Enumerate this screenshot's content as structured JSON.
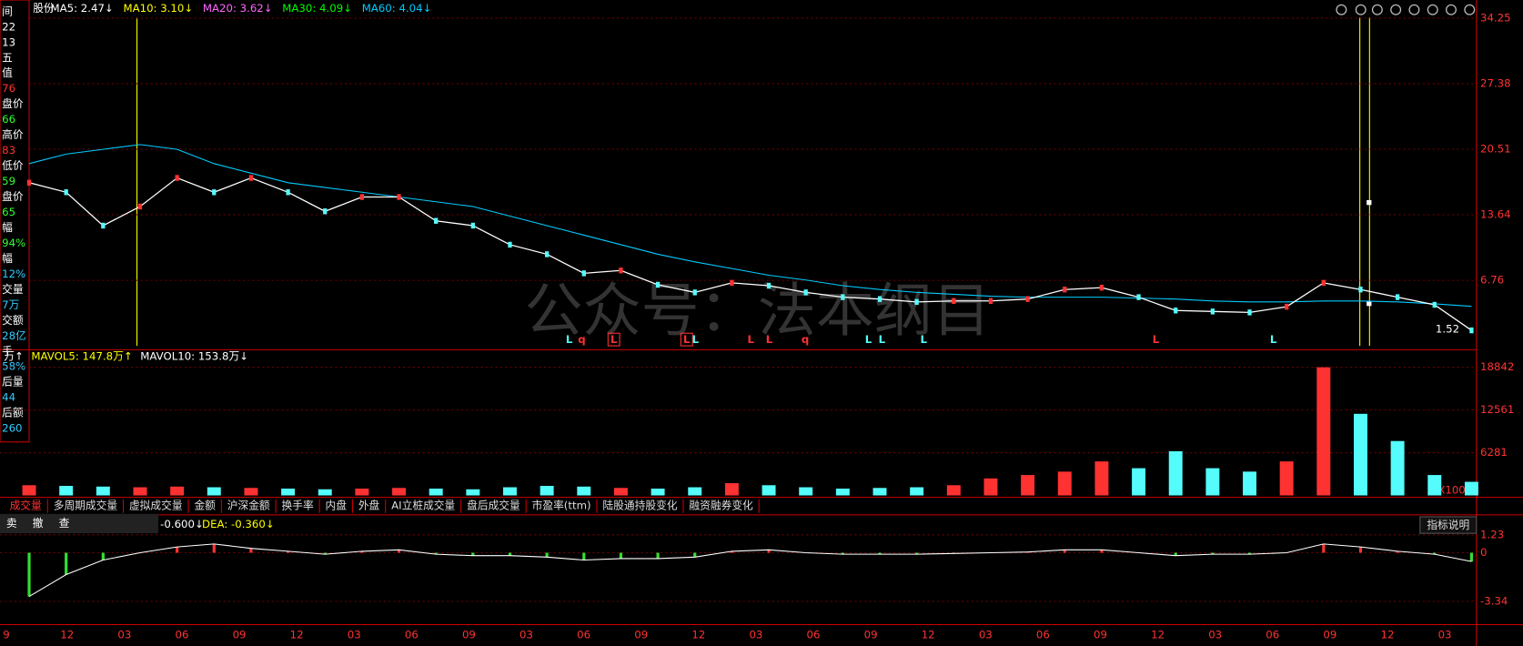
{
  "header": {
    "stock": "股份",
    "ma": [
      {
        "text": "MA5: 2.47↓",
        "color": "#ffffff"
      },
      {
        "text": "MA10: 3.10↓",
        "color": "#ffff00"
      },
      {
        "text": "MA20: 3.62↓",
        "color": "#ff66ff"
      },
      {
        "text": "MA30: 4.09↓",
        "color": "#00ff00"
      },
      {
        "text": "MA60: 4.04↓",
        "color": "#00ccff"
      }
    ]
  },
  "left_panel": [
    {
      "text": "间",
      "color": "#ffffff"
    },
    {
      "text": "22",
      "color": "#ffffff"
    },
    {
      "text": "13",
      "color": "#ffffff"
    },
    {
      "text": "五",
      "color": "#ffffff"
    },
    {
      "text": "值",
      "color": "#ffffff"
    },
    {
      "text": "76",
      "color": "#ff3333"
    },
    {
      "text": "盘价",
      "color": "#ffffff"
    },
    {
      "text": "66",
      "color": "#33ff33"
    },
    {
      "text": "高价",
      "color": "#ffffff"
    },
    {
      "text": "83",
      "color": "#ff3333"
    },
    {
      "text": "低价",
      "color": "#ffffff"
    },
    {
      "text": "59",
      "color": "#33ff33"
    },
    {
      "text": "盘价",
      "color": "#ffffff"
    },
    {
      "text": "65",
      "color": "#33ff33"
    },
    {
      "text": "幅",
      "color": "#ffffff"
    },
    {
      "text": "94%",
      "color": "#33ff33"
    },
    {
      "text": "幅",
      "color": "#ffffff"
    },
    {
      "text": "12%",
      "color": "#33ccff"
    },
    {
      "text": "交量",
      "color": "#ffffff"
    },
    {
      "text": "7万",
      "color": "#33ccff"
    },
    {
      "text": "交额",
      "color": "#ffffff"
    },
    {
      "text": "28亿",
      "color": "#33ccff"
    },
    {
      "text": "手",
      "color": "#ffffff"
    },
    {
      "text": "58%",
      "color": "#33ccff"
    },
    {
      "text": "后量",
      "color": "#ffffff"
    },
    {
      "text": "44",
      "color": "#33ccff"
    },
    {
      "text": "后额",
      "color": "#ffffff"
    },
    {
      "text": "260",
      "color": "#33ccff"
    }
  ],
  "price_panel": {
    "ylim": [
      0,
      36.15
    ],
    "yticks": [
      34.25,
      27.38,
      20.51,
      13.64,
      6.76
    ],
    "last_label": "1.52",
    "close": [
      17,
      16,
      12.5,
      14.5,
      17.5,
      16,
      17.5,
      16,
      14,
      15.5,
      15.5,
      13,
      12.5,
      10.5,
      9.5,
      7.5,
      7.8,
      6.3,
      5.5,
      6.5,
      6.2,
      5.5,
      5,
      4.8,
      4.5,
      4.6,
      4.6,
      4.8,
      5.8,
      6,
      5,
      3.6,
      3.5,
      3.4,
      4,
      6.5,
      5.8,
      5,
      4.2,
      1.52
    ],
    "ma60": [
      19,
      20,
      20.5,
      21,
      20.5,
      19,
      18,
      17,
      16.5,
      16,
      15.5,
      15,
      14.5,
      13.5,
      12.5,
      11.5,
      10.5,
      9.5,
      8.7,
      8,
      7.3,
      6.8,
      6.2,
      5.8,
      5.5,
      5.3,
      5.1,
      5,
      5,
      5,
      4.9,
      4.8,
      4.6,
      4.5,
      4.5,
      4.6,
      4.6,
      4.5,
      4.3,
      4.04
    ],
    "signals": [
      "L",
      "q",
      "L",
      "L",
      "L",
      "L",
      "L",
      "q",
      "L",
      "L",
      "L",
      "L",
      "L"
    ],
    "watermark": "公众号：法本纲目"
  },
  "volume_panel": {
    "header": [
      "万↑",
      "MAVOL5: 147.8万↑",
      "MAVOL10: 153.8万↓"
    ],
    "ylim": [
      0,
      20000
    ],
    "yticks": [
      18842,
      12561,
      6281
    ],
    "unit": "X1000",
    "values": [
      1500,
      1400,
      1300,
      1200,
      1300,
      1200,
      1100,
      1000,
      900,
      1000,
      1100,
      1000,
      900,
      1200,
      1400,
      1300,
      1100,
      1000,
      1200,
      1800,
      1500,
      1200,
      1000,
      1100,
      1200,
      1500,
      2500,
      3000,
      3500,
      5000,
      4000,
      6500,
      4000,
      3500,
      5000,
      18842,
      12000,
      8000,
      3000,
      2000
    ]
  },
  "tabs": [
    "成交量",
    "多周期成交量",
    "虚拟成交量",
    "金额",
    "沪深金额",
    "换手率",
    "内盘",
    "外盘",
    "AI立桩成交量",
    "盘后成交量",
    "市盈率(ttm)",
    "陆股通持股变化",
    "融资融券变化"
  ],
  "toolbar": [
    "卖",
    "撤",
    "查"
  ],
  "macd_panel": {
    "header": [
      "-0.600↓",
      "DEA: -0.360↓"
    ],
    "help": "指标说明",
    "ylim": [
      -4.93,
      2.6
    ],
    "yticks": [
      1.23,
      0,
      -3.34
    ],
    "dif": [
      -3,
      -1.5,
      -0.5,
      0,
      0.4,
      0.6,
      0.3,
      0.1,
      -0.1,
      0.1,
      0.2,
      -0.1,
      -0.2,
      -0.2,
      -0.3,
      -0.5,
      -0.4,
      -0.4,
      -0.3,
      0.1,
      0.2,
      0,
      -0.1,
      -0.1,
      -0.1,
      -0.05,
      0,
      0.05,
      0.2,
      0.2,
      0,
      -0.2,
      -0.1,
      -0.1,
      0,
      0.6,
      0.4,
      0.1,
      -0.1,
      -0.6
    ]
  },
  "x_labels": [
    "9",
    "12",
    "03",
    "06",
    "09",
    "12",
    "03",
    "06",
    "09",
    "03",
    "06",
    "09",
    "12",
    "03",
    "06",
    "09",
    "12",
    "03",
    "06",
    "09",
    "12",
    "03",
    "06",
    "09",
    "12",
    "03"
  ]
}
